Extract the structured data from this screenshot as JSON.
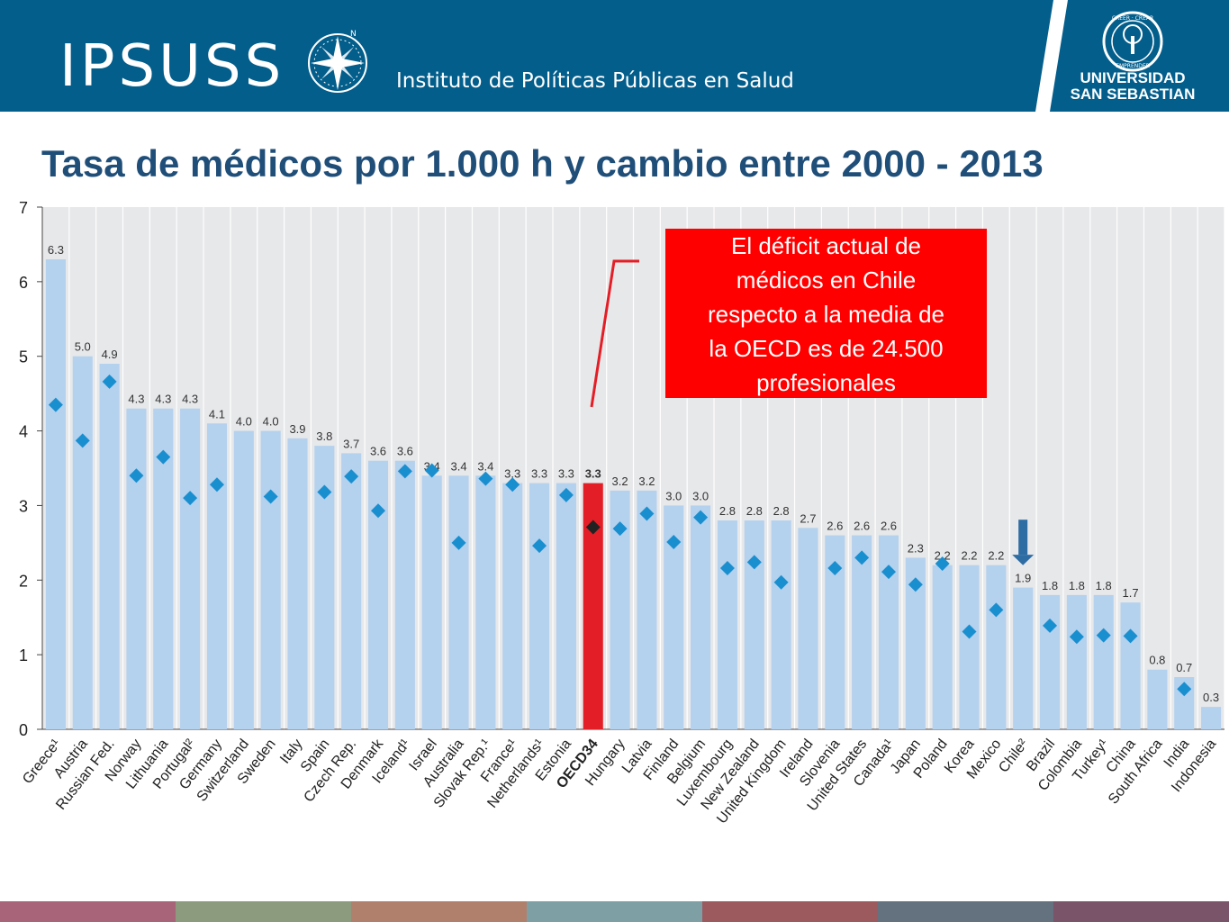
{
  "header": {
    "logo_text": "IPSUSS",
    "subtitle": "Instituto de Políticas Públicas en Salud",
    "university_line1": "UNIVERSIDAD",
    "university_line2": "SAN SEBASTIAN",
    "seal_top": "CREER · CREAR",
    "seal_bottom": "EMPRENDER",
    "compass_n": "N",
    "bg_color": "#035e8b"
  },
  "title": "Tasa de médicos por 1.000 h y cambio entre 2000 - 2013",
  "callout": {
    "lines": [
      "El déficit actual de",
      "médicos en Chile",
      "respecto a la media de",
      "la OECD es de 24.500",
      "profesionales"
    ],
    "bg_color": "#ff0000"
  },
  "chart_data": {
    "type": "bar",
    "ylim": [
      0,
      7
    ],
    "yticks": [
      0,
      1,
      2,
      3,
      4,
      5,
      6,
      7
    ],
    "grid": true,
    "categories": [
      "Greece¹",
      "Austria",
      "Russian Fed.",
      "Norway",
      "Lithuania",
      "Portugal²",
      "Germany",
      "Switzerland",
      "Sweden",
      "Italy",
      "Spain",
      "Czech Rep.",
      "Denmark",
      "Iceland¹",
      "Israel",
      "Australia",
      "Slovak Rep.¹",
      "France¹",
      "Netherlands¹",
      "Estonia",
      "OECD34",
      "Hungary",
      "Latvia",
      "Finland",
      "Belgium",
      "Luxembourg",
      "New Zealand",
      "United Kingdom",
      "Ireland",
      "Slovenia",
      "United States",
      "Canada¹",
      "Japan",
      "Poland",
      "Korea",
      "Mexico",
      "Chile²",
      "Brazil",
      "Colombia",
      "Turkey¹",
      "China",
      "South Africa",
      "India",
      "Indonesia"
    ],
    "value_labels": [
      "6.3",
      "5.0",
      "4.9",
      "4.3",
      "4.3",
      "4.3",
      "4.1",
      "4.0",
      "4.0",
      "3.9",
      "3.8",
      "3.7",
      "3.6",
      "3.6",
      "3.4",
      "3.4",
      "3.4",
      "3.3",
      "3.3",
      "3.3",
      "3.3",
      "3.2",
      "3.2",
      "3.0",
      "3.0",
      "2.8",
      "2.8",
      "2.8",
      "2.7",
      "2.6",
      "2.6",
      "2.6",
      "2.3",
      "2.2",
      "2.2",
      "2.2",
      "1.9",
      "1.8",
      "1.8",
      "1.8",
      "1.7",
      "0.8",
      "0.7",
      "0.3"
    ],
    "series": [
      {
        "values": [
          6.3,
          5.0,
          4.9,
          4.3,
          4.3,
          4.3,
          4.1,
          4.0,
          4.0,
          3.9,
          3.8,
          3.7,
          3.6,
          3.6,
          3.4,
          3.4,
          3.4,
          3.3,
          3.3,
          3.3,
          3.3,
          3.2,
          3.2,
          3.0,
          3.0,
          2.8,
          2.8,
          2.8,
          2.7,
          2.6,
          2.6,
          2.6,
          2.3,
          2.2,
          2.2,
          2.2,
          1.9,
          1.8,
          1.8,
          1.8,
          1.7,
          0.8,
          0.7,
          0.3
        ]
      },
      {
        "values": [
          4.35,
          3.87,
          4.66,
          3.4,
          3.65,
          3.1,
          3.28,
          null,
          3.12,
          null,
          3.18,
          3.39,
          2.93,
          3.46,
          3.47,
          2.5,
          3.36,
          3.28,
          2.46,
          3.14,
          2.71,
          2.69,
          2.89,
          2.51,
          2.84,
          2.16,
          2.24,
          1.97,
          null,
          2.16,
          2.3,
          2.11,
          1.94,
          2.22,
          1.31,
          1.6,
          null,
          1.39,
          1.24,
          1.26,
          1.25,
          null,
          0.54,
          null
        ]
      }
    ],
    "highlight_category": "OECD34",
    "marked_category": "Chile²",
    "colors": {
      "bar": "#b4d1ee",
      "bar_highlight": "#e41e26",
      "marker": "#1a8fcf",
      "marker_highlight": "#222222",
      "plot_bg": "#e7e8ea",
      "arrow": "#2e6da4"
    }
  },
  "footer": {
    "colors": [
      "#a86478",
      "#8c9a7d",
      "#b0806c",
      "#7ea0a5",
      "#9c5a5e",
      "#64717f",
      "#7a5468"
    ]
  }
}
